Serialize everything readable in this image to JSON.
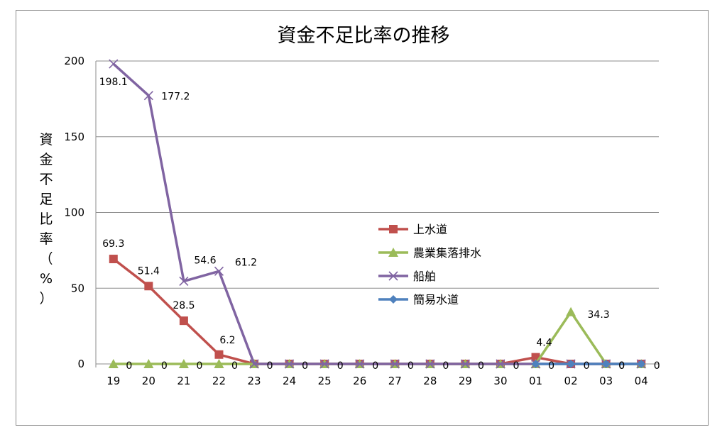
{
  "chart_data": {
    "type": "line",
    "title": "資金不足比率の推移",
    "ylabel": "資金不足比率（%）",
    "xlabel": "",
    "categories": [
      "19",
      "20",
      "21",
      "22",
      "23",
      "24",
      "25",
      "26",
      "27",
      "28",
      "29",
      "30",
      "01",
      "02",
      "03",
      "04"
    ],
    "ylim": [
      0,
      200
    ],
    "yticks": [
      0,
      50,
      100,
      150,
      200
    ],
    "grid": true,
    "legend": "center-right",
    "series": [
      {
        "name": "上水道",
        "color": "#c0504d",
        "marker": "square",
        "values": [
          69.3,
          51.4,
          28.5,
          6.2,
          0,
          0,
          0,
          0,
          0,
          0,
          0,
          0,
          4.4,
          0,
          0,
          0
        ],
        "labels": [
          "69.3",
          "51.4",
          "28.5",
          "6.2",
          "",
          "",
          "",
          "",
          "",
          "",
          "",
          "",
          "4.4",
          "",
          "",
          ""
        ]
      },
      {
        "name": "農業集落排水",
        "color": "#9bbb59",
        "marker": "triangle",
        "values": [
          0,
          0,
          0,
          0,
          0,
          0,
          0,
          0,
          0,
          0,
          0,
          0,
          0,
          34.3,
          0,
          0
        ],
        "labels": [
          "0",
          "0",
          "0",
          "0",
          "0",
          "0",
          "0",
          "0",
          "0",
          "0",
          "0",
          "0",
          "0",
          "34.3",
          "0",
          "0"
        ]
      },
      {
        "name": "船舶",
        "color": "#8064a2",
        "marker": "x",
        "values": [
          198.1,
          177.2,
          54.6,
          61.2,
          0,
          0,
          0,
          0,
          0,
          0,
          0,
          0,
          0,
          0,
          0,
          0
        ],
        "labels": [
          "198.1",
          "177.2",
          "54.6",
          "61.2",
          "",
          "",
          "",
          "",
          "",
          "",
          "",
          "",
          "",
          "",
          "",
          ""
        ]
      },
      {
        "name": "簡易水道",
        "color": "#4f81bd",
        "marker": "diamond",
        "values": [
          null,
          null,
          null,
          null,
          null,
          null,
          null,
          null,
          null,
          null,
          null,
          null,
          0,
          0,
          0,
          0
        ],
        "labels": [
          "",
          "",
          "",
          "",
          "",
          "",
          "",
          "",
          "",
          "",
          "",
          "",
          "",
          "0",
          "0",
          ""
        ]
      }
    ]
  }
}
